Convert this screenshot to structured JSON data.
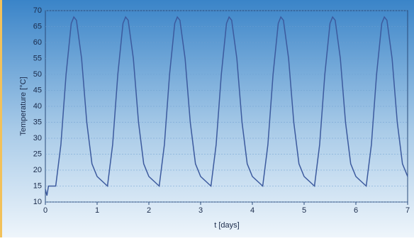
{
  "chart_data": {
    "type": "line",
    "x_label": "t [days]",
    "y_label": "Temperature [°C]",
    "x": [
      0,
      0.03,
      0.06,
      0.2,
      0.3,
      0.4,
      0.5,
      0.55,
      0.6,
      0.7,
      0.8,
      0.9,
      1,
      1.1,
      1.2,
      1.3,
      1.4,
      1.5,
      1.55,
      1.6,
      1.7,
      1.8,
      1.9,
      2,
      2.1,
      2.2,
      2.3,
      2.4,
      2.5,
      2.55,
      2.6,
      2.7,
      2.8,
      2.9,
      3,
      3.1,
      3.2,
      3.3,
      3.4,
      3.5,
      3.55,
      3.6,
      3.7,
      3.8,
      3.9,
      4,
      4.1,
      4.2,
      4.3,
      4.4,
      4.5,
      4.55,
      4.6,
      4.7,
      4.8,
      4.9,
      5,
      5.1,
      5.2,
      5.3,
      5.4,
      5.5,
      5.55,
      5.6,
      5.7,
      5.8,
      5.9,
      6,
      6.1,
      6.2,
      6.3,
      6.4,
      6.5,
      6.55,
      6.6,
      6.7,
      6.8,
      6.9,
      7
    ],
    "series": [
      {
        "color": "#3c5a9e",
        "values": [
          14,
          12,
          15,
          15,
          28,
          50,
          66,
          68,
          67,
          55,
          35,
          22,
          18,
          16.5,
          15,
          28,
          50,
          66,
          68,
          67,
          55,
          35,
          22,
          18,
          16.5,
          15,
          28,
          50,
          66,
          68,
          67,
          55,
          35,
          22,
          18,
          16.5,
          15,
          28,
          50,
          66,
          68,
          67,
          55,
          35,
          22,
          18,
          16.5,
          15,
          28,
          50,
          66,
          68,
          67,
          55,
          35,
          22,
          18,
          16.5,
          15,
          28,
          50,
          66,
          68,
          67,
          55,
          35,
          22,
          18,
          16.5,
          15,
          28,
          50,
          66,
          68,
          67,
          55,
          35,
          22,
          18
        ]
      }
    ],
    "xlim": [
      0,
      7
    ],
    "xticks": [
      0,
      1,
      2,
      3,
      4,
      5,
      6,
      7
    ],
    "ylim": [
      10,
      70
    ],
    "yticks": [
      10,
      15,
      20,
      25,
      30,
      35,
      40,
      45,
      50,
      55,
      60,
      65,
      70
    ],
    "grid": true
  }
}
